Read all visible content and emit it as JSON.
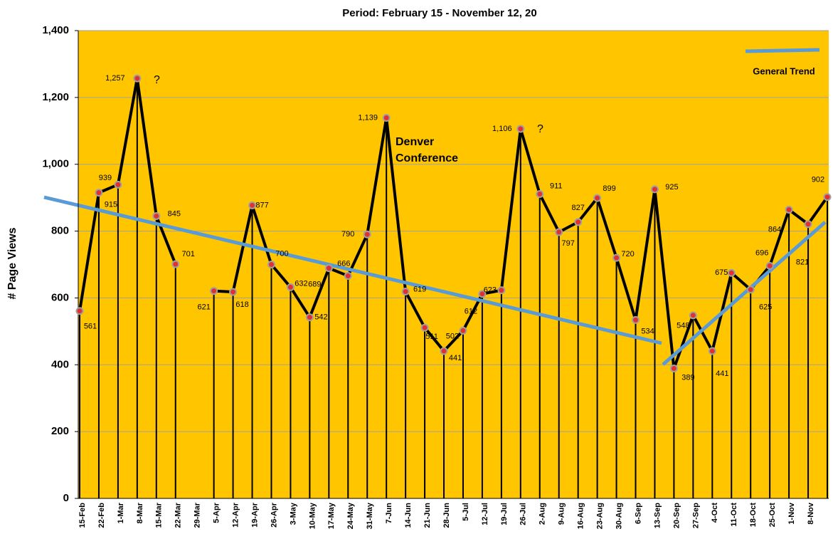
{
  "chart_data": {
    "type": "line",
    "title": "Period: February 15 - November 12, 20",
    "y_label": "# Page Views",
    "categories": [
      "15-Feb",
      "22-Feb",
      "1-Mar",
      "8-Mar",
      "15-Mar",
      "22-Mar",
      "29-Mar",
      "5-Apr",
      "12-Apr",
      "19-Apr",
      "26-Apr",
      "3-May",
      "10-May",
      "17-May",
      "24-May",
      "31-May",
      "7-Jun",
      "14-Jun",
      "21-Jun",
      "28-Jun",
      "5-Jul",
      "12-Jul",
      "19-Jul",
      "26-Jul",
      "2-Aug",
      "9-Aug",
      "16-Aug",
      "23-Aug",
      "30-Aug",
      "6-Sep",
      "13-Sep",
      "20-Sep",
      "27-Sep",
      "4-Oct",
      "11-Oct",
      "18-Oct",
      "25-Oct",
      "1-Nov",
      "8-Nov",
      null
    ],
    "series": [
      {
        "name": "General Trend",
        "color": "#000000",
        "values": [
          561,
          915,
          939,
          1257,
          845,
          701,
          null,
          621,
          618,
          877,
          700,
          632,
          542,
          689,
          666,
          790,
          1139,
          619,
          511,
          441,
          502,
          612,
          623,
          1106,
          911,
          797,
          827,
          899,
          720,
          534,
          925,
          389,
          548,
          441,
          675,
          625,
          696,
          864,
          821,
          902
        ],
        "value_labels": [
          "561",
          "915",
          "939",
          "1,257",
          "845",
          "701",
          null,
          "621",
          "618",
          "877",
          "700",
          "632",
          "542",
          "689",
          "666",
          "790",
          "1,139",
          "619",
          "511",
          "441",
          "502",
          "612",
          "623",
          "1,106",
          "911",
          "797",
          "827",
          "899",
          "720",
          "534",
          "925",
          "389",
          "548",
          "441",
          "675",
          "625",
          "696",
          "864",
          "821",
          "902"
        ]
      }
    ],
    "annotations": [
      "?",
      "Denver",
      "Conference",
      "?"
    ],
    "ylim": [
      0,
      1400
    ],
    "yticks": [
      0,
      200,
      400,
      600,
      800,
      {
        "value": 1000,
        "label": "1,000"
      },
      {
        "value": 1200,
        "label": "1,200"
      },
      {
        "value": 1400,
        "label": "1,400"
      }
    ],
    "grid": true,
    "plot_color": "#ffc600",
    "trend_color": "#5b9bd5"
  }
}
